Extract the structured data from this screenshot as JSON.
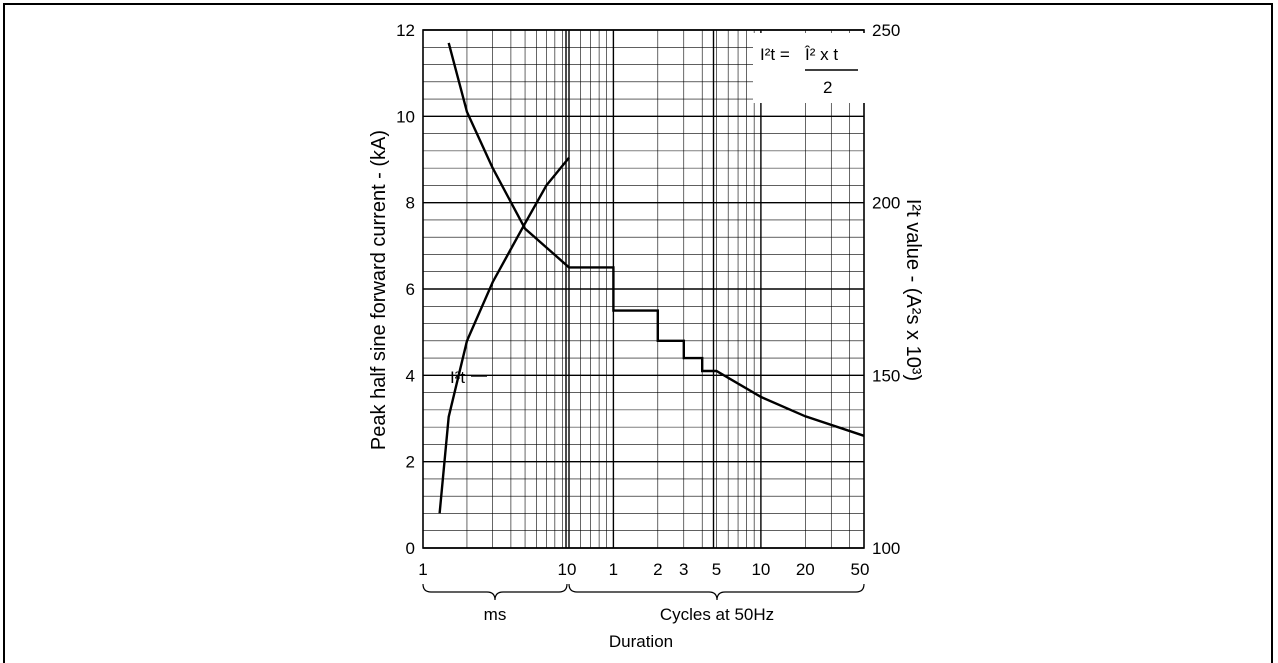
{
  "chart_data": {
    "type": "line",
    "title": "",
    "ylabel_left": "Peak half sine forward current - (kA)",
    "ylabel_right": "I²t value - (A²s x 10³)",
    "xlabel": "Duration",
    "y_left": {
      "min": 0,
      "max": 12,
      "ticks": [
        "0",
        "2",
        "4",
        "6",
        "8",
        "10",
        "12"
      ]
    },
    "y_right": {
      "min": 100,
      "max": 250,
      "ticks": [
        "100",
        "150",
        "200",
        "250"
      ]
    },
    "x_segments": [
      {
        "label": "ms",
        "scale": "log",
        "range": [
          1,
          10
        ],
        "ticks": [
          "1",
          "10"
        ]
      },
      {
        "label": "Cycles at 50Hz",
        "scale": "log",
        "range": [
          0.5,
          50
        ],
        "ticks": [
          "1",
          "2",
          "3",
          "5",
          "10",
          "20",
          "50"
        ]
      }
    ],
    "formula": {
      "lhs": "I²t =",
      "numerator": "Î² x t",
      "denominator": "2"
    },
    "grid": true,
    "series": [
      {
        "name": "I²t",
        "axis": "right",
        "x_unit": "ms",
        "points": [
          [
            1.3,
            110
          ],
          [
            1.5,
            138
          ],
          [
            2.0,
            160
          ],
          [
            3.0,
            177
          ],
          [
            5.0,
            194
          ],
          [
            7.0,
            205
          ],
          [
            10,
            213
          ]
        ]
      },
      {
        "name": "",
        "axis": "left",
        "points_ms": [
          [
            1.5,
            11.7
          ],
          [
            2.0,
            10.1
          ],
          [
            3.0,
            8.8
          ],
          [
            5.0,
            7.4
          ],
          [
            10,
            6.5
          ]
        ],
        "points_cycles": [
          [
            0.5,
            6.5
          ],
          [
            1,
            6.5
          ],
          [
            1,
            5.5
          ],
          [
            2,
            5.5
          ],
          [
            2,
            4.8
          ],
          [
            3,
            4.8
          ],
          [
            3,
            4.4
          ],
          [
            4,
            4.4
          ],
          [
            4,
            4.1
          ],
          [
            5,
            4.1
          ],
          [
            10,
            3.5
          ],
          [
            20,
            3.05
          ],
          [
            50,
            2.6
          ]
        ]
      }
    ]
  }
}
